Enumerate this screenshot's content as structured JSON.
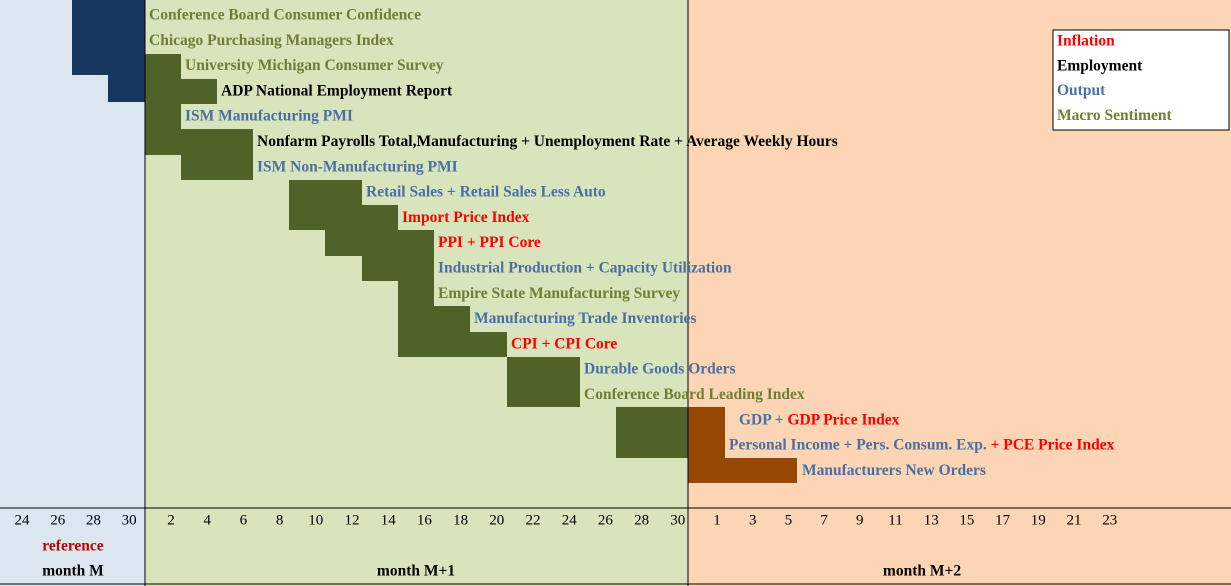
{
  "releases": [
    {
      "parts": [
        {
          "text": "Conference Board Consumer Confidence",
          "color": "#6e7f35"
        }
      ]
    },
    {
      "parts": [
        {
          "text": "Chicago Purchasing Managers Index",
          "color": "#6e7f35"
        }
      ]
    },
    {
      "parts": [
        {
          "text": "University Michigan Consumer Survey",
          "color": "#6e7f35"
        }
      ]
    },
    {
      "parts": [
        {
          "text": "ADP National Employment Report",
          "color": "#000000"
        }
      ]
    },
    {
      "parts": [
        {
          "text": "ISM Manufacturing PMI",
          "color": "#4a6fa5"
        }
      ]
    },
    {
      "parts": [
        {
          "text": "Nonfarm Payrolls Total,Manufacturing + Unemployment Rate + Average Weekly Hours",
          "color": "#000000"
        }
      ]
    },
    {
      "parts": [
        {
          "text": "ISM Non-Manufacturing PMI",
          "color": "#4a6fa5"
        }
      ]
    },
    {
      "parts": [
        {
          "text": "Retail Sales + Retail Sales Less Auto",
          "color": "#4a6fa5"
        }
      ]
    },
    {
      "parts": [
        {
          "text": "Import Price Index",
          "color": "#ff0000"
        }
      ]
    },
    {
      "parts": [
        {
          "text": "PPI + PPI Core",
          "color": "#ff0000"
        }
      ]
    },
    {
      "parts": [
        {
          "text": "Industrial Production + Capacity Utilization",
          "color": "#4a6fa5"
        }
      ]
    },
    {
      "parts": [
        {
          "text": "Empire State Manufacturing Survey",
          "color": "#6e7f35"
        }
      ]
    },
    {
      "parts": [
        {
          "text": "Manufacturing Trade Inventories",
          "color": "#4a6fa5"
        }
      ]
    },
    {
      "parts": [
        {
          "text": "CPI + CPI Core",
          "color": "#ff0000"
        }
      ]
    },
    {
      "parts": [
        {
          "text": "Durable Goods Orders",
          "color": "#4a6fa5"
        }
      ]
    },
    {
      "parts": [
        {
          "text": "Conference Board Leading Index",
          "color": "#6e7f35"
        }
      ]
    },
    {
      "parts": [
        {
          "text": "GDP + ",
          "color": "#4a6fa5"
        },
        {
          "text": "GDP Price Index",
          "color": "#ff0000"
        }
      ]
    },
    {
      "parts": [
        {
          "text": "Personal Income + Pers. Consum. Exp.",
          "color": "#4a6fa5"
        },
        {
          "text": " + PCE Price Index",
          "color": "#ff0000"
        }
      ]
    },
    {
      "parts": [
        {
          "text": "Manufacturers New Orders",
          "color": "#4a6fa5"
        }
      ]
    }
  ],
  "legend": [
    {
      "label": "Inflation",
      "color": "#ff0000"
    },
    {
      "label": "Employment",
      "color": "#000000"
    },
    {
      "label": "Output",
      "color": "#4a6fa5"
    },
    {
      "label": "Macro Sentiment",
      "color": "#6e7f35"
    }
  ],
  "axis": {
    "month_m_days": [
      24,
      26,
      28,
      30
    ],
    "month_m1_days": [
      2,
      4,
      6,
      8,
      10,
      12,
      14,
      16,
      18,
      20,
      22,
      24,
      26,
      28,
      30
    ],
    "month_m2_days": [
      1,
      3,
      5,
      7,
      9,
      11,
      13,
      15,
      17,
      19,
      21,
      23
    ],
    "reference": "reference",
    "months": [
      "month M",
      "month M+1",
      "month M+2"
    ]
  }
}
